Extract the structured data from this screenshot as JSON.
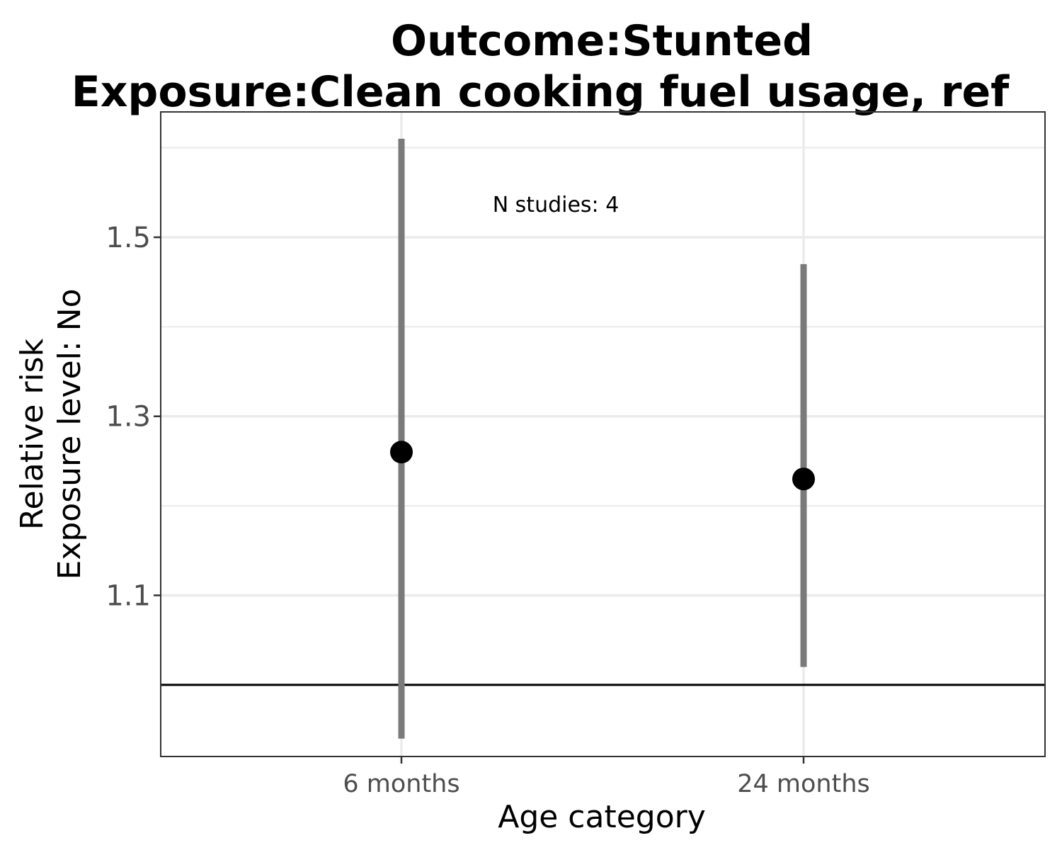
{
  "chart_data": {
    "type": "scatter",
    "title_line1": "Outcome:Stunted",
    "title_line2": "Exposure:Clean cooking fuel usage, ref",
    "xlabel": "Age category",
    "ylabel_line1": "Relative risk",
    "ylabel_line2": "Exposure level: No",
    "categories": [
      "6 months",
      "24 months"
    ],
    "points": [
      {
        "category": "6 months",
        "estimate": 1.26,
        "lower": 0.94,
        "upper": 1.61
      },
      {
        "category": "24 months",
        "estimate": 1.23,
        "lower": 1.02,
        "upper": 1.47
      }
    ],
    "yticks": [
      1.1,
      1.3,
      1.5
    ],
    "yticks_labels": [
      "1.1",
      "1.3",
      "1.5"
    ],
    "ylim": [
      0.92,
      1.64
    ],
    "reference_line": 1.0,
    "annotation": "N studies: 4",
    "grid": true,
    "colors": {
      "point": "#000000",
      "ci_bar": "#7a7a7a",
      "grid": "#ebebeb",
      "panel_border": "#333333",
      "reference_line": "#000000"
    }
  }
}
